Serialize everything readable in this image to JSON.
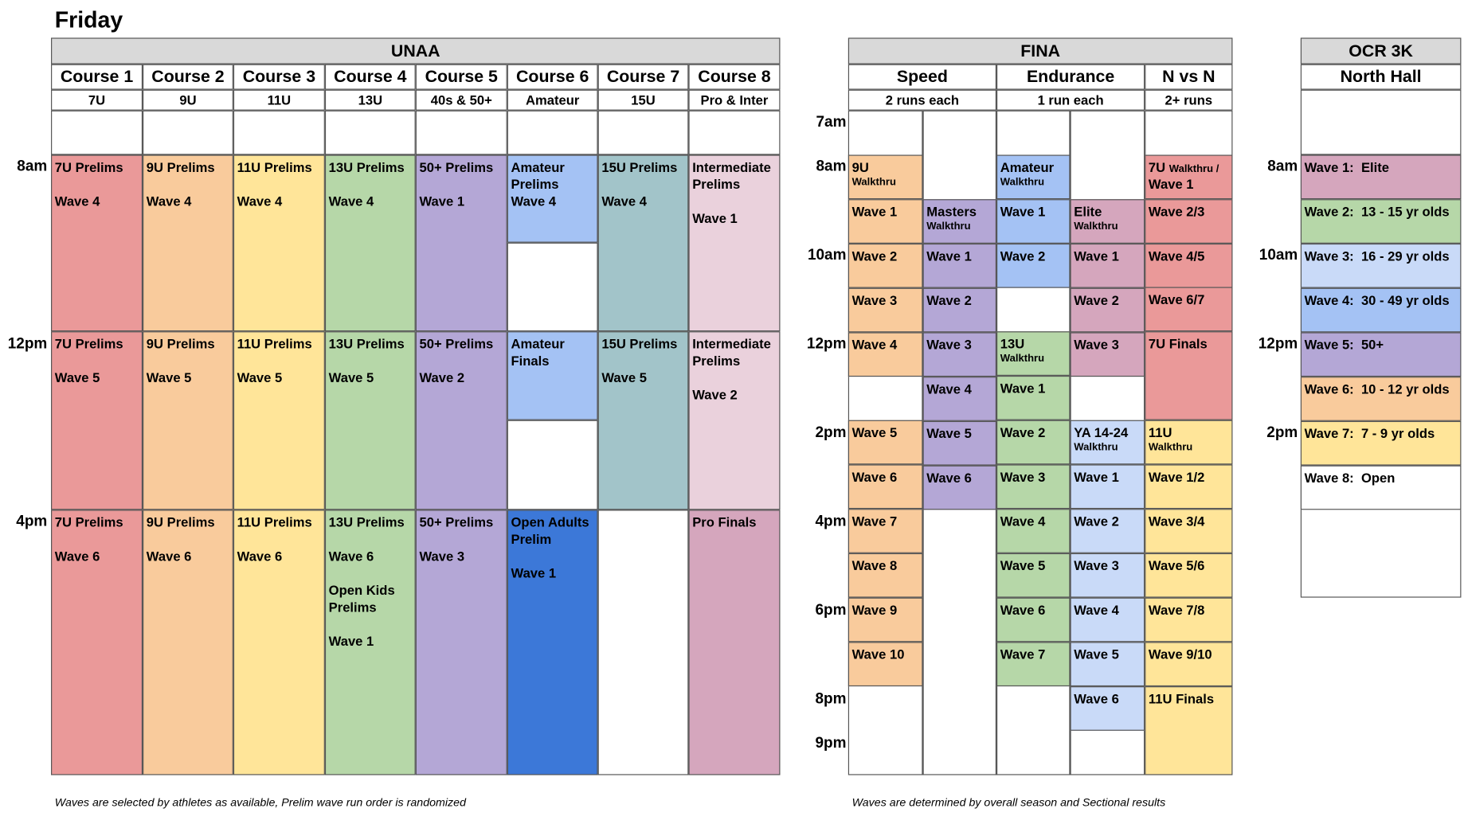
{
  "title": "Friday",
  "colors": {
    "red": "#ea9999",
    "orange": "#f9cb9c",
    "yellow": "#ffe599",
    "green": "#b6d7a8",
    "purple": "#b4a7d6",
    "blue": "#a4c2f4",
    "teal": "#a2c4c9",
    "pink": "#ead1dc",
    "mauve": "#d5a6bd",
    "darkblue": "#3c78d8",
    "lightblue": "#c9daf8",
    "white": "#ffffff"
  },
  "unaa": {
    "title": "UNAA",
    "courses": [
      {
        "name": "Course 1",
        "sub": "7U"
      },
      {
        "name": "Course 2",
        "sub": "9U"
      },
      {
        "name": "Course 3",
        "sub": "11U"
      },
      {
        "name": "Course 4",
        "sub": "13U"
      },
      {
        "name": "Course 5",
        "sub": "40s & 50+"
      },
      {
        "name": "Course 6",
        "sub": "Amateur"
      },
      {
        "name": "Course 7",
        "sub": "15U"
      },
      {
        "name": "Course 8",
        "sub": "Pro & Inter"
      }
    ],
    "times": [
      "8am",
      "12pm",
      "4pm"
    ],
    "footnote": "Waves are selected by athletes as available, Prelim wave run order is randomized"
  },
  "fina": {
    "title": "FINA",
    "groups": [
      {
        "name": "Speed",
        "sub": "2 runs each"
      },
      {
        "name": "Endurance",
        "sub": "1 run each"
      },
      {
        "name": "N vs N",
        "sub": "2+ runs"
      }
    ],
    "times": [
      "7am",
      "8am",
      "10am",
      "12pm",
      "2pm",
      "4pm",
      "6pm",
      "8pm",
      "9pm"
    ],
    "footnote": "Waves are determined by overall season and Sectional results"
  },
  "ocr": {
    "title": "OCR 3K",
    "sub": "North Hall",
    "times": [
      "8am",
      "10am",
      "12pm",
      "2pm"
    ]
  },
  "blocks": [
    {
      "lines": [
        "7U Prelims",
        "",
        "Wave 4"
      ],
      "color": "red"
    },
    {
      "lines": [
        "9U Prelims",
        "",
        "Wave 4"
      ],
      "color": "orange"
    },
    {
      "lines": [
        "11U Prelims",
        "",
        "Wave 4"
      ],
      "color": "yellow"
    },
    {
      "lines": [
        "13U Prelims",
        "",
        "Wave 4"
      ],
      "color": "green"
    },
    {
      "lines": [
        "50+ Prelims",
        "",
        "Wave 1"
      ],
      "color": "purple"
    },
    {
      "lines": [
        "Amateur Prelims",
        "Wave 4"
      ],
      "color": "blue"
    },
    {
      "lines": [
        "15U Prelims",
        "",
        "Wave 4"
      ],
      "color": "teal"
    },
    {
      "lines": [
        "Intermediate Prelims",
        "",
        "Wave 1"
      ],
      "color": "pink"
    },
    {
      "lines": [
        "7U Prelims",
        "",
        "Wave 5"
      ],
      "color": "red"
    },
    {
      "lines": [
        "9U Prelims",
        "",
        "Wave 5"
      ],
      "color": "orange"
    },
    {
      "lines": [
        "11U Prelims",
        "",
        "Wave 5"
      ],
      "color": "yellow"
    },
    {
      "lines": [
        "13U Prelims",
        "",
        "Wave 5"
      ],
      "color": "green"
    },
    {
      "lines": [
        "50+ Prelims",
        "",
        "Wave 2"
      ],
      "color": "purple"
    },
    {
      "lines": [
        "Amateur Finals"
      ],
      "color": "blue"
    },
    {
      "lines": [
        "15U Prelims",
        "",
        "Wave 5"
      ],
      "color": "teal"
    },
    {
      "lines": [
        "Intermediate Prelims",
        "",
        "Wave 2"
      ],
      "color": "pink"
    },
    {
      "lines": [
        "7U Prelims",
        "",
        "Wave 6"
      ],
      "color": "red"
    },
    {
      "lines": [
        "9U Prelims",
        "",
        "Wave 6"
      ],
      "color": "orange"
    },
    {
      "lines": [
        "11U Prelims",
        "",
        "Wave 6"
      ],
      "color": "yellow"
    },
    {
      "lines": [
        "13U Prelims",
        "",
        "Wave 6",
        "",
        "Open Kids Prelims",
        "",
        "Wave 1"
      ],
      "color": "green"
    },
    {
      "lines": [
        "50+ Prelims",
        "",
        "Wave 3"
      ],
      "color": "purple"
    },
    {
      "lines": [
        "Open Adults Prelim",
        "",
        "Wave 1"
      ],
      "color": "darkblue"
    },
    {
      "lines": [
        "Pro Finals"
      ],
      "color": "mauve"
    },
    {
      "lines": [
        "9U"
      ],
      "small": "Walkthru",
      "color": "orange"
    },
    {
      "lines": [
        "Wave 1"
      ],
      "color": "orange"
    },
    {
      "lines": [
        "Wave 2"
      ],
      "color": "orange"
    },
    {
      "lines": [
        "Wave 3"
      ],
      "color": "orange"
    },
    {
      "lines": [
        "Wave 4"
      ],
      "color": "orange"
    },
    {
      "lines": [
        "Wave 5"
      ],
      "color": "orange"
    },
    {
      "lines": [
        "Wave 6"
      ],
      "color": "orange"
    },
    {
      "lines": [
        "Wave 7"
      ],
      "color": "orange"
    },
    {
      "lines": [
        "Wave 8"
      ],
      "color": "orange"
    },
    {
      "lines": [
        "Wave 9"
      ],
      "color": "orange"
    },
    {
      "lines": [
        "Wave 10"
      ],
      "color": "orange"
    },
    {
      "lines": [
        "Masters"
      ],
      "small": "Walkthru",
      "color": "purple"
    },
    {
      "lines": [
        "Wave 1"
      ],
      "color": "purple"
    },
    {
      "lines": [
        "Wave 2"
      ],
      "color": "purple"
    },
    {
      "lines": [
        "Wave 3"
      ],
      "color": "purple"
    },
    {
      "lines": [
        "Wave 4"
      ],
      "color": "purple"
    },
    {
      "lines": [
        "Wave 5"
      ],
      "color": "purple"
    },
    {
      "lines": [
        "Wave 6"
      ],
      "color": "purple"
    },
    {
      "lines": [
        "Amateur"
      ],
      "small": "Walkthru",
      "color": "blue"
    },
    {
      "lines": [
        "Wave 1"
      ],
      "color": "blue"
    },
    {
      "lines": [
        "Wave 2"
      ],
      "color": "blue"
    },
    {
      "lines": [
        "13U"
      ],
      "small": "Walkthru",
      "color": "green"
    },
    {
      "lines": [
        "Wave 1"
      ],
      "color": "green"
    },
    {
      "lines": [
        "Wave 2"
      ],
      "color": "green"
    },
    {
      "lines": [
        "Wave 3"
      ],
      "color": "green"
    },
    {
      "lines": [
        "Wave 4"
      ],
      "color": "green"
    },
    {
      "lines": [
        "Wave 5"
      ],
      "color": "green"
    },
    {
      "lines": [
        "Wave 6"
      ],
      "color": "green"
    },
    {
      "lines": [
        "Wave 7"
      ],
      "color": "green"
    },
    {
      "lines": [
        "Elite"
      ],
      "small": "Walkthru",
      "color": "mauve"
    },
    {
      "lines": [
        "Wave 1"
      ],
      "color": "mauve"
    },
    {
      "lines": [
        "Wave 2"
      ],
      "color": "mauve"
    },
    {
      "lines": [
        "Wave 3"
      ],
      "color": "mauve"
    },
    {
      "lines": [
        "YA 14-24"
      ],
      "small": "Walkthru",
      "color": "lightblue"
    },
    {
      "lines": [
        "Wave 1"
      ],
      "color": "lightblue"
    },
    {
      "lines": [
        "Wave 2"
      ],
      "color": "lightblue"
    },
    {
      "lines": [
        "Wave 3"
      ],
      "color": "lightblue"
    },
    {
      "lines": [
        "Wave 4"
      ],
      "color": "lightblue"
    },
    {
      "lines": [
        "Wave 5"
      ],
      "color": "lightblue"
    },
    {
      "lines": [
        "Wave 6"
      ],
      "color": "lightblue"
    },
    {
      "lines": [
        "7U Walkthru /",
        "Wave 1"
      ],
      "color": "red",
      "smallFirst": true
    },
    {
      "lines": [
        "Wave 2/3"
      ],
      "color": "red"
    },
    {
      "lines": [
        "Wave 4/5"
      ],
      "color": "red"
    },
    {
      "lines": [
        "Wave 6/7"
      ],
      "color": "red"
    },
    {
      "lines": [
        "7U Finals"
      ],
      "color": "red"
    },
    {
      "lines": [
        "11U"
      ],
      "small": "Walkthru",
      "color": "yellow"
    },
    {
      "lines": [
        "Wave 1/2"
      ],
      "color": "yellow"
    },
    {
      "lines": [
        "Wave 3/4"
      ],
      "color": "yellow"
    },
    {
      "lines": [
        "Wave 5/6"
      ],
      "color": "yellow"
    },
    {
      "lines": [
        "Wave 7/8"
      ],
      "color": "yellow"
    },
    {
      "lines": [
        "Wave 9/10"
      ],
      "color": "yellow"
    },
    {
      "lines": [
        "11U Finals"
      ],
      "color": "yellow"
    },
    {
      "lines": [
        "Wave 1:  Elite"
      ],
      "color": "mauve"
    },
    {
      "lines": [
        "Wave 2:  13 - 15 yr olds"
      ],
      "color": "green"
    },
    {
      "lines": [
        "Wave 3:  16 - 29 yr olds"
      ],
      "color": "lightblue"
    },
    {
      "lines": [
        "Wave 4:  30 - 49 yr olds"
      ],
      "color": "blue"
    },
    {
      "lines": [
        "Wave 5:  50+"
      ],
      "color": "purple"
    },
    {
      "lines": [
        "Wave 6:  10 - 12 yr olds"
      ],
      "color": "orange"
    },
    {
      "lines": [
        "Wave 7:  7 - 9 yr olds"
      ],
      "color": "yellow"
    },
    {
      "lines": [
        "Wave 8:  Open"
      ],
      "color": "white"
    }
  ]
}
